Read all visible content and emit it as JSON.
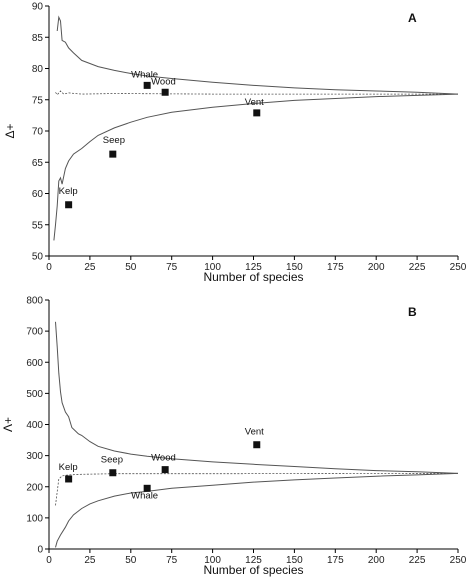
{
  "chart_data": [
    {
      "type": "scatter",
      "panel_label": "A",
      "xlabel": "Number of species",
      "ylabel": "Δ+",
      "xlim": [
        0,
        250
      ],
      "ylim": [
        50,
        90
      ],
      "xticks": [
        0,
        25,
        50,
        75,
        100,
        125,
        150,
        175,
        200,
        225,
        250
      ],
      "yticks": [
        50,
        55,
        60,
        65,
        70,
        75,
        80,
        85,
        90
      ],
      "points": [
        {
          "label": "Kelp",
          "x": 12,
          "y": 58.2
        },
        {
          "label": "Seep",
          "x": 39,
          "y": 66.3
        },
        {
          "label": "Whale",
          "x": 60,
          "y": 77.3
        },
        {
          "label": "Wood",
          "x": 71,
          "y": 76.2
        },
        {
          "label": "Vent",
          "x": 127,
          "y": 72.9
        }
      ],
      "mean": [
        [
          4,
          76.2
        ],
        [
          5,
          75.8
        ],
        [
          7,
          76.4
        ],
        [
          9,
          75.9
        ],
        [
          12,
          76.1
        ],
        [
          20,
          75.9
        ],
        [
          40,
          76.0
        ],
        [
          100,
          75.9
        ],
        [
          250,
          75.9
        ]
      ],
      "upper_limit": [
        [
          5,
          86
        ],
        [
          6,
          88.2
        ],
        [
          7,
          87.6
        ],
        [
          8,
          84.5
        ],
        [
          10,
          84.2
        ],
        [
          12,
          83.3
        ],
        [
          15,
          82.5
        ],
        [
          20,
          81.3
        ],
        [
          25,
          80.8
        ],
        [
          30,
          80.3
        ],
        [
          40,
          79.7
        ],
        [
          50,
          79.2
        ],
        [
          60,
          78.8
        ],
        [
          75,
          78.4
        ],
        [
          100,
          77.8
        ],
        [
          125,
          77.3
        ],
        [
          150,
          76.9
        ],
        [
          175,
          76.6
        ],
        [
          200,
          76.4
        ],
        [
          225,
          76.2
        ],
        [
          250,
          75.9
        ]
      ],
      "lower_limit": [
        [
          3,
          52.5
        ],
        [
          4,
          55
        ],
        [
          5,
          58
        ],
        [
          6,
          62
        ],
        [
          7,
          62.5
        ],
        [
          8,
          61.5
        ],
        [
          10,
          64
        ],
        [
          12,
          65.2
        ],
        [
          15,
          66.3
        ],
        [
          20,
          67.2
        ],
        [
          25,
          68.3
        ],
        [
          30,
          69.3
        ],
        [
          40,
          70.5
        ],
        [
          50,
          71.4
        ],
        [
          60,
          72.2
        ],
        [
          75,
          73
        ],
        [
          100,
          73.8
        ],
        [
          125,
          74.4
        ],
        [
          150,
          74.9
        ],
        [
          175,
          75.2
        ],
        [
          200,
          75.5
        ],
        [
          225,
          75.7
        ],
        [
          250,
          75.9
        ]
      ]
    },
    {
      "type": "scatter",
      "panel_label": "B",
      "xlabel": "Number of species",
      "ylabel": "Λ+",
      "xlim": [
        0,
        250
      ],
      "ylim": [
        0,
        800
      ],
      "xticks": [
        0,
        25,
        50,
        75,
        100,
        125,
        150,
        175,
        200,
        225,
        250
      ],
      "yticks": [
        0,
        100,
        200,
        300,
        400,
        500,
        600,
        700,
        800
      ],
      "points": [
        {
          "label": "Kelp",
          "x": 12,
          "y": 225
        },
        {
          "label": "Seep",
          "x": 39,
          "y": 245
        },
        {
          "label": "Whale",
          "x": 60,
          "y": 195
        },
        {
          "label": "Wood",
          "x": 71,
          "y": 255
        },
        {
          "label": "Vent",
          "x": 127,
          "y": 335
        }
      ],
      "mean": [
        [
          4,
          140
        ],
        [
          6,
          225
        ],
        [
          8,
          235
        ],
        [
          12,
          238
        ],
        [
          20,
          240
        ],
        [
          40,
          242
        ],
        [
          100,
          242
        ],
        [
          250,
          243
        ]
      ],
      "upper_limit": [
        [
          4,
          730
        ],
        [
          5,
          650
        ],
        [
          6,
          565
        ],
        [
          7,
          505
        ],
        [
          8,
          470
        ],
        [
          10,
          440
        ],
        [
          12,
          425
        ],
        [
          14,
          390
        ],
        [
          16,
          380
        ],
        [
          18,
          370
        ],
        [
          20,
          365
        ],
        [
          25,
          345
        ],
        [
          30,
          330
        ],
        [
          40,
          315
        ],
        [
          50,
          305
        ],
        [
          60,
          298
        ],
        [
          75,
          290
        ],
        [
          100,
          280
        ],
        [
          125,
          272
        ],
        [
          150,
          265
        ],
        [
          175,
          258
        ],
        [
          200,
          252
        ],
        [
          225,
          248
        ],
        [
          250,
          243
        ]
      ],
      "lower_limit": [
        [
          4,
          5
        ],
        [
          5,
          25
        ],
        [
          7,
          45
        ],
        [
          10,
          70
        ],
        [
          12,
          90
        ],
        [
          15,
          110
        ],
        [
          20,
          130
        ],
        [
          25,
          145
        ],
        [
          30,
          155
        ],
        [
          40,
          170
        ],
        [
          50,
          180
        ],
        [
          60,
          185
        ],
        [
          75,
          195
        ],
        [
          100,
          205
        ],
        [
          125,
          215
        ],
        [
          150,
          222
        ],
        [
          175,
          228
        ],
        [
          200,
          234
        ],
        [
          225,
          238
        ],
        [
          250,
          243
        ]
      ]
    }
  ]
}
